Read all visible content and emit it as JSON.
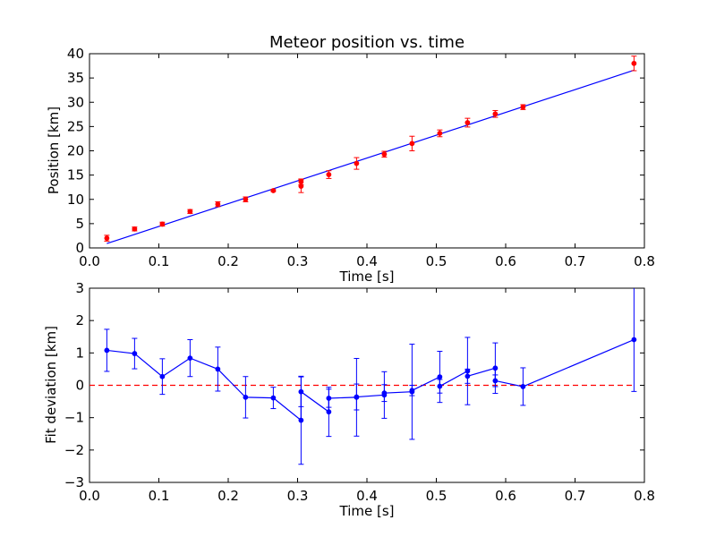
{
  "chart_data": [
    {
      "type": "scatter",
      "title": "Meteor position vs. time",
      "xlabel": "Time [s]",
      "ylabel": "Position [km]",
      "xlim": [
        0.0,
        0.8
      ],
      "ylim": [
        0,
        40
      ],
      "xticks": [
        "0.0",
        "0.1",
        "0.2",
        "0.3",
        "0.4",
        "0.5",
        "0.6",
        "0.7",
        "0.8"
      ],
      "yticks": [
        "0",
        "5",
        "10",
        "15",
        "20",
        "25",
        "30",
        "35",
        "40"
      ],
      "grid": false,
      "series": [
        {
          "style": "points-with-error-bars",
          "color": "#ff0000",
          "x": [
            0.025,
            0.065,
            0.105,
            0.145,
            0.185,
            0.225,
            0.265,
            0.305,
            0.305,
            0.345,
            0.385,
            0.425,
            0.465,
            0.505,
            0.545,
            0.585,
            0.625,
            0.785
          ],
          "y": [
            2.0,
            3.9,
            4.9,
            7.5,
            9.0,
            10.0,
            11.8,
            13.6,
            12.7,
            15.1,
            17.4,
            19.3,
            21.5,
            23.6,
            25.8,
            27.6,
            29.0,
            38.0
          ],
          "err": [
            0.6,
            0.4,
            0.4,
            0.4,
            0.5,
            0.5,
            0.2,
            0.6,
            1.3,
            0.8,
            1.2,
            0.6,
            1.5,
            0.7,
            0.9,
            0.7,
            0.5,
            1.5
          ]
        },
        {
          "style": "fit-line",
          "color": "#0000ff",
          "x": [
            0.025,
            0.785
          ],
          "y": [
            0.9,
            36.6
          ]
        }
      ]
    },
    {
      "type": "line",
      "title": "",
      "xlabel": "Time [s]",
      "ylabel": "Fit deviation [km]",
      "xlim": [
        0.0,
        0.8
      ],
      "ylim": [
        -3,
        3
      ],
      "xticks": [
        "0.0",
        "0.1",
        "0.2",
        "0.3",
        "0.4",
        "0.5",
        "0.6",
        "0.7",
        "0.8"
      ],
      "yticks": [
        "−3",
        "−2",
        "−1",
        "0",
        "1",
        "2",
        "3"
      ],
      "grid": false,
      "series": [
        {
          "style": "line-with-error-bars",
          "color": "#0000ff",
          "x": [
            0.025,
            0.065,
            0.105,
            0.145,
            0.185,
            0.225,
            0.265,
            0.305,
            0.305,
            0.345,
            0.345,
            0.385,
            0.385,
            0.425,
            0.425,
            0.465,
            0.465,
            0.505,
            0.505,
            0.545,
            0.545,
            0.585,
            0.585,
            0.625,
            0.785
          ],
          "y": [
            1.08,
            0.98,
            0.27,
            0.84,
            0.5,
            -0.37,
            -0.39,
            -1.08,
            -0.2,
            -0.82,
            -0.4,
            -0.37,
            -0.36,
            -0.3,
            -0.24,
            -0.2,
            -0.16,
            0.26,
            -0.03,
            0.44,
            0.28,
            0.53,
            0.14,
            -0.04,
            1.41
          ],
          "err": [
            0.65,
            0.47,
            0.55,
            0.57,
            0.68,
            0.64,
            0.33,
            1.36,
            0.46,
            0.76,
            0.28,
            1.2,
            0.4,
            0.72,
            0.26,
            1.47,
            0.16,
            0.79,
            0.21,
            1.04,
            0.22,
            0.78,
            0.18,
            0.58,
            1.6
          ]
        },
        {
          "style": "reference-line",
          "color": "#ff0000",
          "dashed": true,
          "x": [
            0.0,
            0.785
          ],
          "y": [
            0,
            0
          ]
        }
      ]
    }
  ]
}
